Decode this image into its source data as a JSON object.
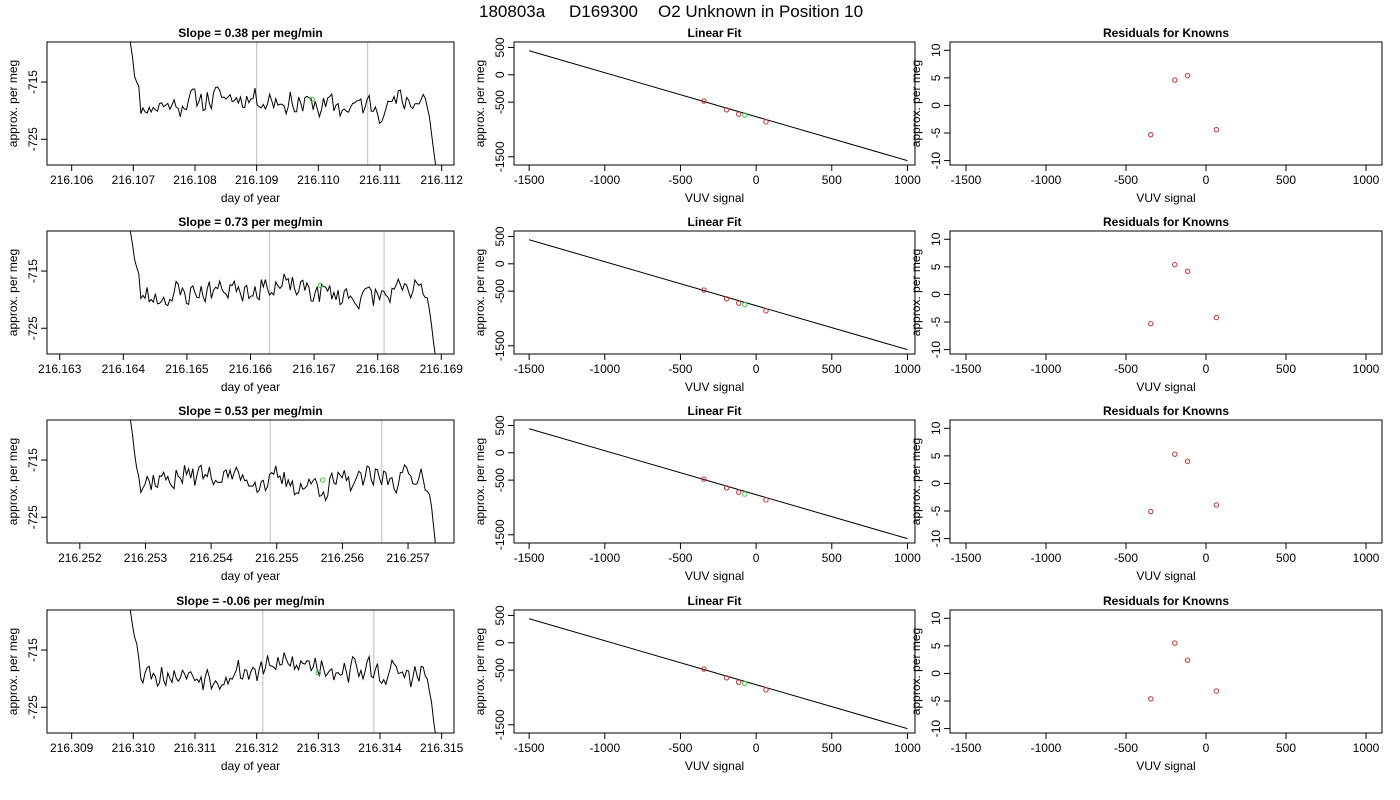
{
  "title": {
    "run": "180803a",
    "tank": "D169300",
    "desc": "O2 Unknown in Position  10"
  },
  "colors": {
    "known": "#d32f2f",
    "unknown": "#2ecc40",
    "marker": "#bdbdbd",
    "line": "#000000"
  },
  "chart_data": [
    {
      "type": "line",
      "row": 0,
      "title": "Slope =  0.38  per meg/min",
      "xlabel": "day of year",
      "ylabel": "approx. per meg",
      "xlim": [
        216.1056,
        216.1122
      ],
      "ylim": [
        -729.5,
        -708.0
      ],
      "xticks": [
        "216.106",
        "216.107",
        "216.108",
        "216.109",
        "216.110",
        "216.111",
        "216.112"
      ],
      "yticks": [
        "-715",
        "-725"
      ],
      "vlines": [
        216.109,
        216.1108
      ],
      "unknown_point": [
        216.1099,
        -718.0
      ],
      "seed": 11
    },
    {
      "type": "scatter",
      "row": 0,
      "title": "Linear Fit",
      "xlabel": "VUV signal",
      "ylabel": "approx. per meg",
      "xlim": [
        -1600,
        1050
      ],
      "ylim": [
        -1650,
        600
      ],
      "xticks": [
        "-1500",
        "-1000",
        "-500",
        "0",
        "500",
        "1000"
      ],
      "yticks": [
        "500",
        "0",
        "-500",
        "-1500"
      ],
      "line": {
        "x": [
          -1500,
          1000
        ],
        "y": [
          440,
          -1570
        ]
      },
      "knowns": {
        "x": [
          -345,
          -195,
          -115,
          65
        ],
        "y": [
          -480,
          -640,
          -720,
          -860
        ]
      },
      "unknown_point": [
        -75,
        -738
      ]
    },
    {
      "type": "scatter",
      "row": 0,
      "title": "Residuals for Knowns",
      "xlabel": "VUV signal",
      "ylabel": "approx. per meg",
      "xlim": [
        -1600,
        1100
      ],
      "ylim": [
        -10.8,
        11.5
      ],
      "xticks": [
        "-1500",
        "-1000",
        "-500",
        "0",
        "500",
        "1000"
      ],
      "yticks": [
        "10",
        "5",
        "0",
        "-5",
        "-10"
      ],
      "x": [
        -345,
        -195,
        -115,
        65
      ],
      "y": [
        -5.3,
        4.6,
        5.4,
        -4.4
      ]
    },
    {
      "type": "line",
      "row": 1,
      "title": "Slope =  0.73  per meg/min",
      "xlabel": "day of year",
      "ylabel": "approx. per meg",
      "xlim": [
        216.1628,
        216.1692
      ],
      "ylim": [
        -729.5,
        -708.0
      ],
      "xticks": [
        "216.163",
        "216.164",
        "216.165",
        "216.166",
        "216.167",
        "216.168",
        "216.169"
      ],
      "yticks": [
        "-715",
        "-725"
      ],
      "vlines": [
        216.1663,
        216.1681
      ],
      "unknown_point": [
        216.1671,
        -717.5
      ],
      "seed": 23
    },
    {
      "type": "scatter",
      "row": 1,
      "title": "Linear Fit",
      "xlabel": "VUV signal",
      "ylabel": "approx. per meg",
      "xlim": [
        -1600,
        1050
      ],
      "ylim": [
        -1650,
        600
      ],
      "xticks": [
        "-1500",
        "-1000",
        "-500",
        "0",
        "500",
        "1000"
      ],
      "yticks": [
        "500",
        "0",
        "-500",
        "-1500"
      ],
      "line": {
        "x": [
          -1500,
          1000
        ],
        "y": [
          440,
          -1570
        ]
      },
      "knowns": {
        "x": [
          -345,
          -195,
          -115,
          65
        ],
        "y": [
          -480,
          -640,
          -720,
          -860
        ]
      },
      "unknown_point": [
        -75,
        -748
      ]
    },
    {
      "type": "scatter",
      "row": 1,
      "title": "Residuals for Knowns",
      "xlabel": "VUV signal",
      "ylabel": "approx. per meg",
      "xlim": [
        -1600,
        1100
      ],
      "ylim": [
        -10.8,
        11.5
      ],
      "xticks": [
        "-1500",
        "-1000",
        "-500",
        "0",
        "500",
        "1000"
      ],
      "yticks": [
        "10",
        "5",
        "0",
        "-5",
        "-10"
      ],
      "x": [
        -345,
        -195,
        -115,
        65
      ],
      "y": [
        -5.3,
        5.4,
        4.2,
        -4.2
      ]
    },
    {
      "type": "line",
      "row": 2,
      "title": "Slope =  0.53  per meg/min",
      "xlabel": "day of year",
      "ylabel": "approx. per meg",
      "xlim": [
        216.2515,
        216.2577
      ],
      "ylim": [
        -729.5,
        -708.0
      ],
      "xticks": [
        "216.252",
        "216.253",
        "216.254",
        "216.255",
        "216.256",
        "216.257"
      ],
      "yticks": [
        "-715",
        "-725"
      ],
      "vlines": [
        216.2549,
        216.2566
      ],
      "unknown_point": [
        216.2557,
        -718.5
      ],
      "seed": 37
    },
    {
      "type": "scatter",
      "row": 2,
      "title": "Linear Fit",
      "xlabel": "VUV signal",
      "ylabel": "approx. per meg",
      "xlim": [
        -1600,
        1050
      ],
      "ylim": [
        -1650,
        600
      ],
      "xticks": [
        "-1500",
        "-1000",
        "-500",
        "0",
        "500",
        "1000"
      ],
      "yticks": [
        "500",
        "0",
        "-500",
        "-1500"
      ],
      "line": {
        "x": [
          -1500,
          1000
        ],
        "y": [
          440,
          -1570
        ]
      },
      "knowns": {
        "x": [
          -345,
          -195,
          -115,
          65
        ],
        "y": [
          -480,
          -640,
          -720,
          -860
        ]
      },
      "unknown_point": [
        -75,
        -755
      ]
    },
    {
      "type": "scatter",
      "row": 2,
      "title": "Residuals for Knowns",
      "xlabel": "VUV signal",
      "ylabel": "approx. per meg",
      "xlim": [
        -1600,
        1100
      ],
      "ylim": [
        -10.8,
        11.5
      ],
      "xticks": [
        "-1500",
        "-1000",
        "-500",
        "0",
        "500",
        "1000"
      ],
      "yticks": [
        "10",
        "5",
        "0",
        "-5",
        "-10"
      ],
      "x": [
        -345,
        -195,
        -115,
        65
      ],
      "y": [
        -5.1,
        5.3,
        4.0,
        -3.9
      ]
    },
    {
      "type": "line",
      "row": 3,
      "title": "Slope =  -0.06  per meg/min",
      "xlabel": "day of year",
      "ylabel": "approx. per meg",
      "xlim": [
        216.3086,
        216.3152
      ],
      "ylim": [
        -729.5,
        -708.0
      ],
      "xticks": [
        "216.309",
        "216.310",
        "216.311",
        "216.312",
        "216.313",
        "216.314",
        "216.315"
      ],
      "yticks": [
        "-715",
        "-725"
      ],
      "vlines": [
        216.3121,
        216.3139
      ],
      "unknown_point": [
        216.313,
        -719.0
      ],
      "seed": 53
    },
    {
      "type": "scatter",
      "row": 3,
      "title": "Linear Fit",
      "xlabel": "VUV signal",
      "ylabel": "approx. per meg",
      "xlim": [
        -1600,
        1050
      ],
      "ylim": [
        -1650,
        600
      ],
      "xticks": [
        "-1500",
        "-1000",
        "-500",
        "0",
        "500",
        "1000"
      ],
      "yticks": [
        "500",
        "0",
        "-500",
        "-1500"
      ],
      "line": {
        "x": [
          -1500,
          1000
        ],
        "y": [
          440,
          -1570
        ]
      },
      "knowns": {
        "x": [
          -345,
          -195,
          -115,
          65
        ],
        "y": [
          -480,
          -640,
          -720,
          -860
        ]
      },
      "unknown_point": [
        -75,
        -745
      ]
    },
    {
      "type": "scatter",
      "row": 3,
      "title": "Residuals for Knowns",
      "xlabel": "VUV signal",
      "ylabel": "approx. per meg",
      "xlim": [
        -1600,
        1100
      ],
      "ylim": [
        -10.8,
        11.5
      ],
      "xticks": [
        "-1500",
        "-1000",
        "-500",
        "0",
        "500",
        "1000"
      ],
      "yticks": [
        "10",
        "5",
        "0",
        "-5",
        "-10"
      ],
      "x": [
        -345,
        -195,
        -115,
        65
      ],
      "y": [
        -4.6,
        5.5,
        2.4,
        -3.2
      ]
    }
  ]
}
